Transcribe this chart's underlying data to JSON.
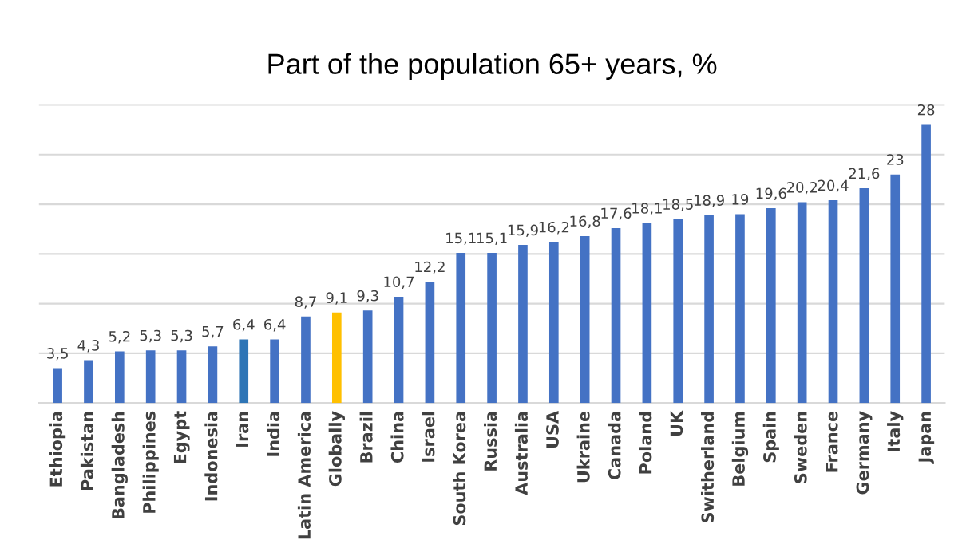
{
  "chart_data": {
    "type": "bar",
    "title": "Part of the population 65+ years, %",
    "categories": [
      "Ethiopia",
      "Pakistan",
      "Bangladesh",
      "Philippines",
      "Egypt",
      "Indonesia",
      "Iran",
      "India",
      "Latin America",
      "Globally",
      "Brazil",
      "China",
      "Israel",
      "South Korea",
      "Russia",
      "Australia",
      "USA",
      "Ukraine",
      "Canada",
      "Poland",
      "UK",
      "Switherland",
      "Belgium",
      "Spain",
      "Sweden",
      "France",
      "Germany",
      "Italy",
      "Japan"
    ],
    "values": [
      3.5,
      4.3,
      5.2,
      5.3,
      5.3,
      5.7,
      6.4,
      6.4,
      8.7,
      9.1,
      9.3,
      10.7,
      12.2,
      15.1,
      15.1,
      15.9,
      16.2,
      16.8,
      17.6,
      18.1,
      18.5,
      18.9,
      19,
      19.6,
      20.2,
      20.4,
      21.6,
      23,
      28
    ],
    "value_labels": [
      "3,5",
      "4,3",
      "5,2",
      "5,3",
      "5,3",
      "5,7",
      "6,4",
      "6,4",
      "8,7",
      "9,1",
      "9,3",
      "10,7",
      "12,2",
      "15,1",
      "15,1",
      "15,9",
      "16,2",
      "16,8",
      "17,6",
      "18,1",
      "18,5",
      "18,9",
      "19",
      "19,6",
      "20,2",
      "20,4",
      "21,6",
      "23",
      "28"
    ],
    "colors": [
      "#4472c4",
      "#4472c4",
      "#4472c4",
      "#4472c4",
      "#4472c4",
      "#4472c4",
      "#2e75b6",
      "#4472c4",
      "#4472c4",
      "#ffc000",
      "#4472c4",
      "#4472c4",
      "#4472c4",
      "#4472c4",
      "#4472c4",
      "#4472c4",
      "#4472c4",
      "#4472c4",
      "#4472c4",
      "#4472c4",
      "#4472c4",
      "#4472c4",
      "#4472c4",
      "#4472c4",
      "#4472c4",
      "#4472c4",
      "#4472c4",
      "#4472c4",
      "#4472c4"
    ],
    "ylim": [
      0,
      30
    ],
    "yticks": [
      {
        "value": 0,
        "label": null
      },
      {
        "value": 5,
        "label": null
      },
      {
        "value": 10,
        "label": null
      },
      {
        "value": 15,
        "label": null
      },
      {
        "value": 20,
        "label": null
      },
      {
        "value": 25,
        "label": null
      },
      {
        "value": 30,
        "label": null
      }
    ],
    "grid": "y",
    "tick_labels": "x"
  }
}
